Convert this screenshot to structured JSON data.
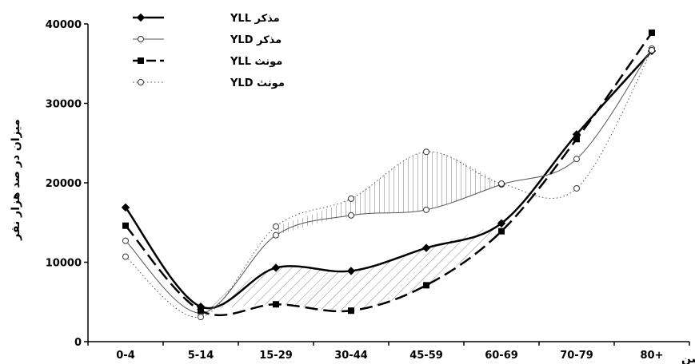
{
  "chart_data": {
    "type": "line",
    "categories": [
      "0-4",
      "5-14",
      "15-29",
      "30-44",
      "45-59",
      "60-69",
      "70-79",
      "80+"
    ],
    "ylabel": "میزان در صد هزار نفر",
    "xlabel": "سن",
    "ylim": [
      0,
      40000
    ],
    "yticks": [
      "0",
      "10000",
      "20000",
      "30000",
      "40000"
    ],
    "grid": false,
    "legend": "top-left",
    "series": [
      {
        "name": "مذکر YLL",
        "values": [
          16900,
          4400,
          9300,
          8900,
          11800,
          14900,
          26100,
          36600
        ],
        "color": "#000000",
        "marker": "diamond",
        "dash": "solid",
        "width": 2.5
      },
      {
        "name": "مذکر YLD",
        "values": [
          12700,
          3600,
          13400,
          15900,
          16600,
          19800,
          23000,
          36900
        ],
        "color": "#555555",
        "marker": "circle",
        "dash": "solid",
        "width": 1
      },
      {
        "name": "مونث YLL",
        "values": [
          14600,
          3900,
          4700,
          3900,
          7100,
          13900,
          25500,
          38900
        ],
        "color": "#000000",
        "marker": "square",
        "dash": "long-dash",
        "width": 2.5
      },
      {
        "name": "مونث YLD",
        "values": [
          10700,
          3100,
          14500,
          18000,
          23900,
          19900,
          19300,
          36700
        ],
        "color": "#555555",
        "marker": "circle",
        "dash": "dotted",
        "width": 1
      }
    ]
  }
}
